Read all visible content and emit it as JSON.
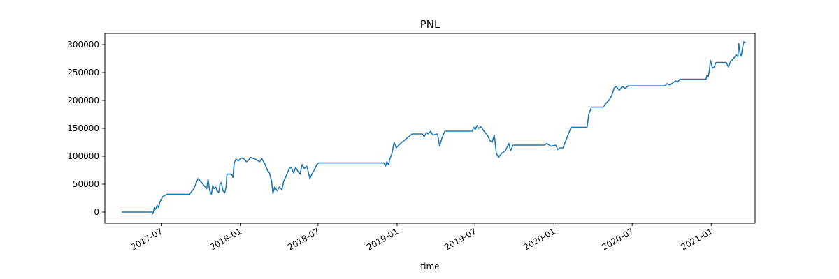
{
  "chart_data": {
    "type": "line",
    "title": "PNL",
    "xlabel": "time",
    "ylabel": "",
    "ylim": [
      -20000,
      320000
    ],
    "xlim": [
      "2017-02-20",
      "2021-04-13"
    ],
    "grid": false,
    "legend": "none",
    "x_ticks": [
      {
        "date": "2017-07-01",
        "label": "2017-07"
      },
      {
        "date": "2018-01-01",
        "label": "2018-01"
      },
      {
        "date": "2018-07-01",
        "label": "2018-07"
      },
      {
        "date": "2019-01-01",
        "label": "2019-01"
      },
      {
        "date": "2019-07-01",
        "label": "2019-07"
      },
      {
        "date": "2020-01-01",
        "label": "2020-01"
      },
      {
        "date": "2020-07-01",
        "label": "2020-07"
      },
      {
        "date": "2021-01-01",
        "label": "2021-01"
      }
    ],
    "y_ticks": [
      0,
      50000,
      100000,
      150000,
      200000,
      250000,
      300000
    ],
    "series": [
      {
        "color": "#1f77b4",
        "points": [
          [
            "2017-03-31",
            0
          ],
          [
            "2017-06-10",
            0
          ],
          [
            "2017-06-12",
            -3000
          ],
          [
            "2017-06-15",
            8000
          ],
          [
            "2017-06-18",
            5000
          ],
          [
            "2017-06-22",
            12000
          ],
          [
            "2017-06-25",
            8000
          ],
          [
            "2017-06-28",
            18000
          ],
          [
            "2017-07-05",
            28000
          ],
          [
            "2017-07-15",
            32000
          ],
          [
            "2017-08-10",
            32000
          ],
          [
            "2017-09-05",
            32000
          ],
          [
            "2017-09-15",
            42000
          ],
          [
            "2017-09-22",
            55000
          ],
          [
            "2017-09-25",
            60000
          ],
          [
            "2017-10-01",
            55000
          ],
          [
            "2017-10-08",
            48000
          ],
          [
            "2017-10-15",
            42000
          ],
          [
            "2017-10-18",
            58000
          ],
          [
            "2017-10-22",
            38000
          ],
          [
            "2017-10-26",
            32000
          ],
          [
            "2017-10-29",
            48000
          ],
          [
            "2017-11-01",
            42000
          ],
          [
            "2017-11-05",
            45000
          ],
          [
            "2017-11-08",
            38000
          ],
          [
            "2017-11-12",
            35000
          ],
          [
            "2017-11-15",
            50000
          ],
          [
            "2017-11-18",
            53000
          ],
          [
            "2017-11-22",
            38000
          ],
          [
            "2017-11-26",
            35000
          ],
          [
            "2017-11-29",
            45000
          ],
          [
            "2017-12-01",
            68000
          ],
          [
            "2017-12-12",
            68000
          ],
          [
            "2017-12-15",
            62000
          ],
          [
            "2017-12-18",
            88000
          ],
          [
            "2017-12-22",
            95000
          ],
          [
            "2017-12-28",
            92000
          ],
          [
            "2018-01-03",
            97000
          ],
          [
            "2018-01-10",
            95000
          ],
          [
            "2018-01-15",
            90000
          ],
          [
            "2018-01-20",
            93000
          ],
          [
            "2018-01-25",
            98000
          ],
          [
            "2018-02-05",
            95000
          ],
          [
            "2018-02-15",
            90000
          ],
          [
            "2018-02-20",
            96000
          ],
          [
            "2018-02-28",
            85000
          ],
          [
            "2018-03-05",
            75000
          ],
          [
            "2018-03-10",
            70000
          ],
          [
            "2018-03-15",
            55000
          ],
          [
            "2018-03-18",
            33000
          ],
          [
            "2018-03-22",
            45000
          ],
          [
            "2018-03-28",
            38000
          ],
          [
            "2018-04-02",
            45000
          ],
          [
            "2018-04-08",
            40000
          ],
          [
            "2018-04-12",
            55000
          ],
          [
            "2018-04-18",
            65000
          ],
          [
            "2018-04-25",
            78000
          ],
          [
            "2018-04-30",
            80000
          ],
          [
            "2018-05-05",
            70000
          ],
          [
            "2018-05-10",
            80000
          ],
          [
            "2018-05-15",
            73000
          ],
          [
            "2018-05-20",
            68000
          ],
          [
            "2018-05-25",
            85000
          ],
          [
            "2018-05-30",
            78000
          ],
          [
            "2018-06-05",
            82000
          ],
          [
            "2018-06-12",
            60000
          ],
          [
            "2018-06-18",
            70000
          ],
          [
            "2018-06-22",
            75000
          ],
          [
            "2018-06-28",
            85000
          ],
          [
            "2018-07-02",
            88000
          ],
          [
            "2018-12-01",
            88000
          ],
          [
            "2018-12-05",
            82000
          ],
          [
            "2018-12-08",
            90000
          ],
          [
            "2018-12-12",
            85000
          ],
          [
            "2018-12-15",
            95000
          ],
          [
            "2018-12-20",
            105000
          ],
          [
            "2018-12-25",
            125000
          ],
          [
            "2018-12-30",
            115000
          ],
          [
            "2019-01-05",
            120000
          ],
          [
            "2019-01-12",
            125000
          ],
          [
            "2019-01-20",
            130000
          ],
          [
            "2019-01-28",
            135000
          ],
          [
            "2019-02-05",
            140000
          ],
          [
            "2019-02-15",
            140000
          ],
          [
            "2019-03-01",
            140000
          ],
          [
            "2019-03-05",
            135000
          ],
          [
            "2019-03-10",
            142000
          ],
          [
            "2019-03-15",
            140000
          ],
          [
            "2019-03-20",
            145000
          ],
          [
            "2019-03-25",
            138000
          ],
          [
            "2019-04-05",
            140000
          ],
          [
            "2019-04-10",
            118000
          ],
          [
            "2019-04-15",
            132000
          ],
          [
            "2019-04-22",
            145000
          ],
          [
            "2019-06-25",
            145000
          ],
          [
            "2019-06-28",
            152000
          ],
          [
            "2019-07-02",
            148000
          ],
          [
            "2019-07-06",
            155000
          ],
          [
            "2019-07-10",
            150000
          ],
          [
            "2019-07-15",
            153000
          ],
          [
            "2019-07-22",
            145000
          ],
          [
            "2019-07-30",
            138000
          ],
          [
            "2019-08-05",
            128000
          ],
          [
            "2019-08-10",
            125000
          ],
          [
            "2019-08-15",
            138000
          ],
          [
            "2019-08-20",
            105000
          ],
          [
            "2019-08-25",
            98000
          ],
          [
            "2019-09-01",
            105000
          ],
          [
            "2019-09-10",
            110000
          ],
          [
            "2019-09-18",
            123000
          ],
          [
            "2019-09-22",
            110000
          ],
          [
            "2019-09-28",
            120000
          ],
          [
            "2019-12-10",
            120000
          ],
          [
            "2019-12-15",
            123000
          ],
          [
            "2019-12-25",
            118000
          ],
          [
            "2020-01-05",
            120000
          ],
          [
            "2020-01-10",
            112000
          ],
          [
            "2020-01-15",
            115000
          ],
          [
            "2020-01-22",
            115000
          ],
          [
            "2020-02-01",
            135000
          ],
          [
            "2020-02-10",
            152000
          ],
          [
            "2020-03-05",
            152000
          ],
          [
            "2020-03-18",
            152000
          ],
          [
            "2020-03-22",
            175000
          ],
          [
            "2020-03-28",
            188000
          ],
          [
            "2020-04-05",
            188000
          ],
          [
            "2020-04-25",
            188000
          ],
          [
            "2020-05-01",
            195000
          ],
          [
            "2020-05-08",
            200000
          ],
          [
            "2020-05-15",
            210000
          ],
          [
            "2020-05-20",
            222000
          ],
          [
            "2020-05-25",
            225000
          ],
          [
            "2020-06-01",
            218000
          ],
          [
            "2020-06-08",
            225000
          ],
          [
            "2020-06-15",
            222000
          ],
          [
            "2020-06-22",
            226000
          ],
          [
            "2020-07-05",
            226000
          ],
          [
            "2020-09-15",
            226000
          ],
          [
            "2020-09-20",
            230000
          ],
          [
            "2020-09-25",
            228000
          ],
          [
            "2020-10-01",
            230000
          ],
          [
            "2020-10-10",
            235000
          ],
          [
            "2020-10-15",
            233000
          ],
          [
            "2020-10-20",
            238000
          ],
          [
            "2020-12-20",
            238000
          ],
          [
            "2020-12-22",
            245000
          ],
          [
            "2020-12-25",
            243000
          ],
          [
            "2020-12-28",
            255000
          ],
          [
            "2020-12-30",
            272000
          ],
          [
            "2021-01-04",
            258000
          ],
          [
            "2021-01-08",
            260000
          ],
          [
            "2021-01-12",
            268000
          ],
          [
            "2021-02-05",
            268000
          ],
          [
            "2021-02-10",
            260000
          ],
          [
            "2021-02-15",
            270000
          ],
          [
            "2021-02-22",
            275000
          ],
          [
            "2021-02-28",
            282000
          ],
          [
            "2021-03-04",
            278000
          ],
          [
            "2021-03-06",
            302000
          ],
          [
            "2021-03-09",
            285000
          ],
          [
            "2021-03-12",
            280000
          ],
          [
            "2021-03-15",
            295000
          ],
          [
            "2021-03-18",
            305000
          ],
          [
            "2021-03-22",
            303000
          ]
        ]
      }
    ]
  }
}
